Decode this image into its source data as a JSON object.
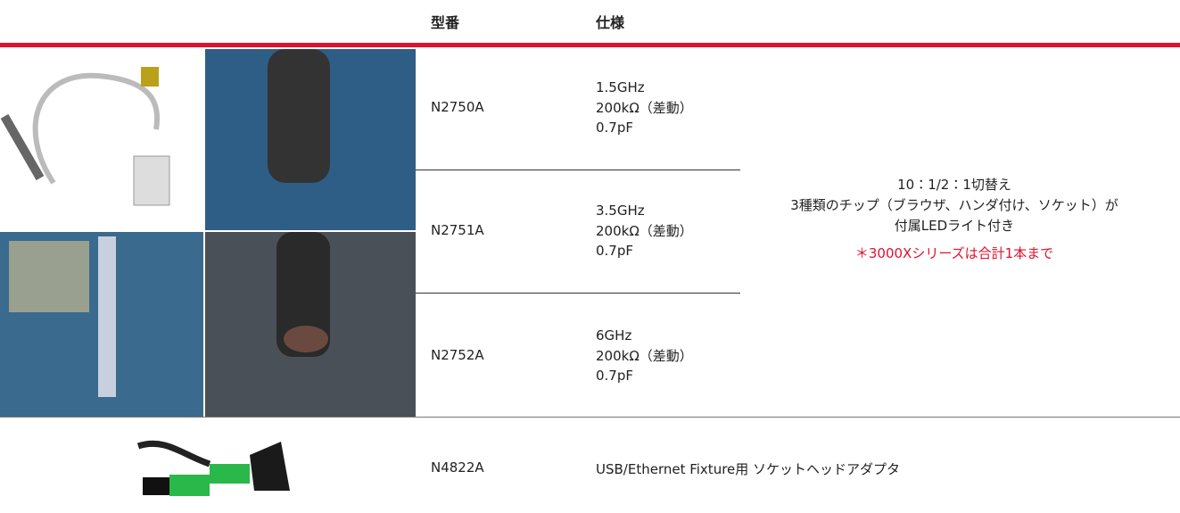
{
  "header": {
    "columns": [
      "型番",
      "仕様"
    ]
  },
  "rows": [
    {
      "model": "N2750A",
      "specs": [
        "1.5GHz",
        "200kΩ（差動）",
        "0.7pF"
      ]
    },
    {
      "model": "N2751A",
      "specs": [
        "3.5GHz",
        "200kΩ（差動）",
        "0.7pF"
      ]
    },
    {
      "model": "N2752A",
      "specs": [
        "6GHz",
        "200kΩ（差動）",
        "0.7pF"
      ]
    }
  ],
  "shared_features": [
    "10：1/2：1切替え",
    "3種類のチップ（ブラウザ、ハンダ付け、ソケット）が",
    "付属LEDライト付き"
  ],
  "shared_note": "＊3000Xシリーズは合計1本まで",
  "adapter": {
    "model": "N4822A",
    "description": "USB/Ethernet Fixture用 ソケットヘッドアダプタ"
  }
}
